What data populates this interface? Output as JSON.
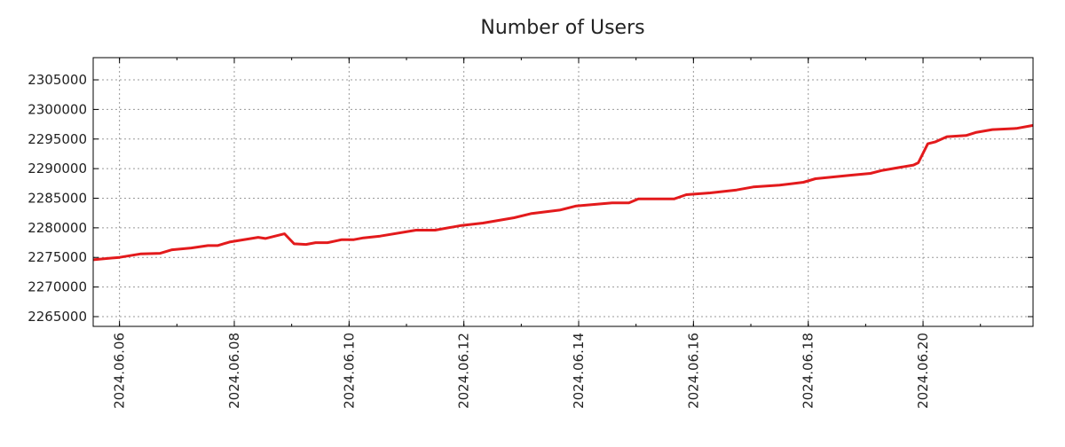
{
  "chart_data": {
    "type": "line",
    "title": "Number of Users",
    "xlabel": "",
    "ylabel": "",
    "grid": true,
    "xlim": [
      "2024-06-05T13:00",
      "2024-06-21T22:00"
    ],
    "ylim": [
      2263350,
      2308750
    ],
    "x_ticks": [
      {
        "label": "2024.06.06",
        "t": "2024-06-06T00:00"
      },
      {
        "label": "2024.06.08",
        "t": "2024-06-08T00:00"
      },
      {
        "label": "2024.06.10",
        "t": "2024-06-10T00:00"
      },
      {
        "label": "2024.06.12",
        "t": "2024-06-12T00:00"
      },
      {
        "label": "2024.06.14",
        "t": "2024-06-14T00:00"
      },
      {
        "label": "2024.06.16",
        "t": "2024-06-16T00:00"
      },
      {
        "label": "2024.06.18",
        "t": "2024-06-18T00:00"
      },
      {
        "label": "2024.06.20",
        "t": "2024-06-20T00:00"
      }
    ],
    "y_ticks": [
      "2265000",
      "2270000",
      "2275000",
      "2280000",
      "2285000",
      "2290000",
      "2295000",
      "2300000",
      "2305000"
    ],
    "series": [
      {
        "name": "Number of Users",
        "color": "#e31a1c",
        "x": [
          "2024-06-05T13:00",
          "2024-06-06T00:00",
          "2024-06-06T09:00",
          "2024-06-06T17:00",
          "2024-06-06T22:00",
          "2024-06-07T06:00",
          "2024-06-07T13:00",
          "2024-06-07T17:00",
          "2024-06-07T22:00",
          "2024-06-08T10:00",
          "2024-06-08T13:00",
          "2024-06-08T21:00",
          "2024-06-09T01:00",
          "2024-06-09T06:00",
          "2024-06-09T10:00",
          "2024-06-09T15:00",
          "2024-06-09T21:00",
          "2024-06-10T02:00",
          "2024-06-10T06:00",
          "2024-06-10T13:00",
          "2024-06-11T04:00",
          "2024-06-11T12:00",
          "2024-06-11T23:00",
          "2024-06-12T08:00",
          "2024-06-12T21:00",
          "2024-06-13T04:00",
          "2024-06-13T16:00",
          "2024-06-13T23:00",
          "2024-06-14T14:00",
          "2024-06-14T21:00",
          "2024-06-15T01:00",
          "2024-06-15T16:00",
          "2024-06-15T21:00",
          "2024-06-16T07:00",
          "2024-06-16T18:00",
          "2024-06-17T01:00",
          "2024-06-17T12:00",
          "2024-06-17T22:00",
          "2024-06-18T03:00",
          "2024-06-18T18:00",
          "2024-06-19T02:00",
          "2024-06-19T07:00",
          "2024-06-19T20:00",
          "2024-06-19T22:00",
          "2024-06-20T02:00",
          "2024-06-20T05:00",
          "2024-06-20T10:00",
          "2024-06-20T18:00",
          "2024-06-20T22:00",
          "2024-06-21T05:00",
          "2024-06-21T15:00",
          "2024-06-21T22:00"
        ],
        "values": [
          2274600,
          2275000,
          2275600,
          2275700,
          2276300,
          2276600,
          2277000,
          2277000,
          2277600,
          2278400,
          2278200,
          2279000,
          2277300,
          2277200,
          2277500,
          2277500,
          2278000,
          2278000,
          2278300,
          2278600,
          2279600,
          2279600,
          2280400,
          2280800,
          2281700,
          2282400,
          2283000,
          2283700,
          2284200,
          2284200,
          2284900,
          2284900,
          2285600,
          2285900,
          2286400,
          2286900,
          2287200,
          2287700,
          2288300,
          2288900,
          2289200,
          2289700,
          2290600,
          2291000,
          2294200,
          2294500,
          2295400,
          2295600,
          2296100,
          2296600,
          2296800,
          2297300
        ]
      }
    ]
  }
}
